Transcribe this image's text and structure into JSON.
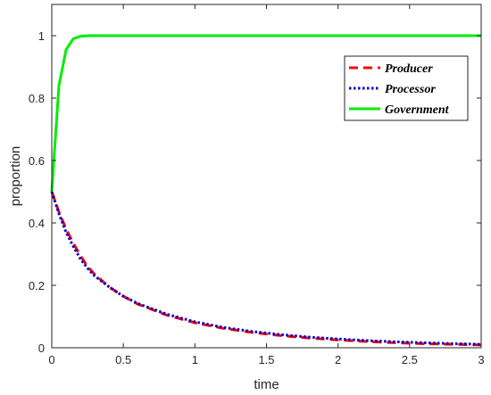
{
  "chart_data": {
    "type": "line",
    "xlabel": "time",
    "ylabel": "proportion",
    "xlim": [
      0,
      3
    ],
    "ylim": [
      0,
      1.1
    ],
    "x_ticks": [
      0,
      0.5,
      1,
      1.5,
      2,
      2.5,
      3
    ],
    "y_ticks": [
      0,
      0.2,
      0.4,
      0.6,
      0.8,
      1
    ],
    "x_tick_labels": [
      "0",
      "0.5",
      "1",
      "1.5",
      "2",
      "2.5",
      "3"
    ],
    "y_tick_labels": [
      "0",
      "0.2",
      "0.4",
      "0.6",
      "0.8",
      "1"
    ],
    "grid": false,
    "legend_position": "top-right",
    "x": [
      0,
      0.05,
      0.1,
      0.15,
      0.2,
      0.25,
      0.3,
      0.4,
      0.5,
      0.6,
      0.8,
      1.0,
      1.2,
      1.4,
      1.6,
      1.8,
      2.0,
      2.2,
      2.4,
      2.6,
      2.8,
      3.0
    ],
    "series": [
      {
        "name": "Producer",
        "color": "#ff0000",
        "style": "dashed",
        "values": [
          0.5,
          0.435,
          0.38,
          0.335,
          0.295,
          0.26,
          0.235,
          0.195,
          0.165,
          0.14,
          0.105,
          0.08,
          0.062,
          0.049,
          0.039,
          0.031,
          0.025,
          0.02,
          0.016,
          0.013,
          0.011,
          0.009
        ]
      },
      {
        "name": "Processor",
        "color": "#0000cc",
        "style": "dotted",
        "values": [
          0.5,
          0.43,
          0.37,
          0.325,
          0.285,
          0.255,
          0.23,
          0.195,
          0.165,
          0.142,
          0.108,
          0.083,
          0.065,
          0.052,
          0.042,
          0.034,
          0.028,
          0.023,
          0.019,
          0.016,
          0.013,
          0.011
        ]
      },
      {
        "name": "Government",
        "color": "#00ee00",
        "style": "solid",
        "values": [
          0.5,
          0.84,
          0.955,
          0.99,
          0.998,
          1.0,
          1.0,
          1.0,
          1.0,
          1.0,
          1.0,
          1.0,
          1.0,
          1.0,
          1.0,
          1.0,
          1.0,
          1.0,
          1.0,
          1.0,
          1.0,
          1.0
        ]
      }
    ]
  }
}
